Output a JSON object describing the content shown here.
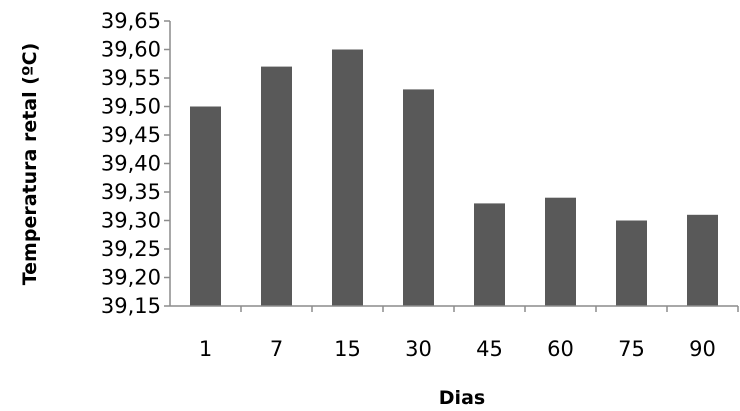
{
  "chart_data": {
    "type": "bar",
    "title": "",
    "xlabel": "Dias",
    "ylabel": "Temperatura retal (ºC)",
    "categories": [
      "1",
      "7",
      "15",
      "30",
      "45",
      "60",
      "75",
      "90"
    ],
    "values": [
      39.5,
      39.57,
      39.6,
      39.53,
      39.33,
      39.34,
      39.3,
      39.31
    ],
    "ylim": [
      39.15,
      39.65
    ],
    "y_ticks": [
      "39,15",
      "39,20",
      "39,25",
      "39,30",
      "39,35",
      "39,40",
      "39,45",
      "39,50",
      "39,55",
      "39,60",
      "39,65"
    ],
    "grid": false,
    "legend": "none",
    "bar_color": "#595959",
    "axis_color": "#8c8c8c"
  }
}
